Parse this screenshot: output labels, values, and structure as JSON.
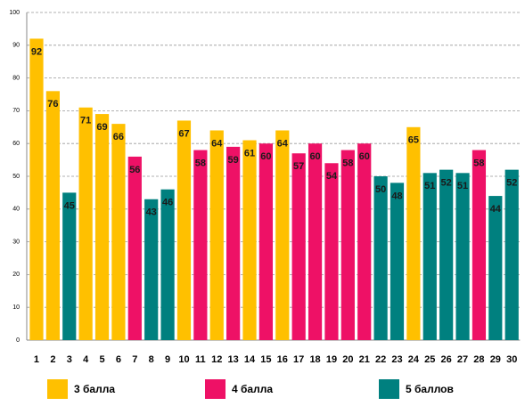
{
  "chart_data": {
    "type": "bar",
    "categories": [
      "1",
      "2",
      "3",
      "4",
      "5",
      "6",
      "7",
      "8",
      "9",
      "10",
      "11",
      "12",
      "13",
      "14",
      "15",
      "16",
      "17",
      "18",
      "19",
      "20",
      "21",
      "22",
      "23",
      "24",
      "25",
      "26",
      "27",
      "28",
      "29",
      "30"
    ],
    "series": [
      {
        "name": "3 балла",
        "color": "#ffc000",
        "values": [
          92,
          76,
          null,
          71,
          69,
          66,
          null,
          null,
          null,
          67,
          null,
          64,
          null,
          61,
          null,
          64,
          null,
          null,
          null,
          null,
          null,
          null,
          null,
          65,
          null,
          null,
          null,
          null,
          null,
          null
        ]
      },
      {
        "name": "4 балла",
        "color": "#ee1166",
        "values": [
          null,
          null,
          null,
          null,
          null,
          null,
          56,
          null,
          null,
          null,
          58,
          null,
          59,
          null,
          60,
          null,
          57,
          60,
          54,
          58,
          60,
          null,
          null,
          null,
          null,
          null,
          null,
          58,
          null,
          null
        ]
      },
      {
        "name": "5 баллов",
        "color": "#00807f",
        "values": [
          null,
          null,
          45,
          null,
          null,
          null,
          null,
          43,
          46,
          null,
          null,
          null,
          null,
          null,
          null,
          null,
          null,
          null,
          null,
          null,
          null,
          50,
          48,
          null,
          51,
          52,
          51,
          null,
          44,
          52
        ]
      }
    ],
    "ylim": [
      0,
      100
    ],
    "yticks": [
      0,
      10,
      20,
      30,
      40,
      50,
      60,
      70,
      80,
      90,
      100
    ],
    "grid": true
  }
}
